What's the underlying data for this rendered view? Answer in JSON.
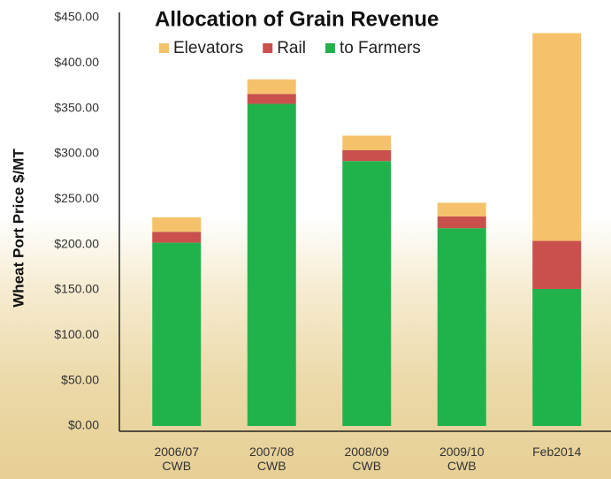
{
  "chart_data": {
    "type": "stacked_bar",
    "title": "Allocation of Grain Revenue",
    "y_label": "Wheat Port Price $/MT",
    "categories": [
      "2006/07 CWB",
      "2007/08 CWB",
      "2008/09 CWB",
      "2009/10 CWB",
      "Feb2014"
    ],
    "series": [
      {
        "name": "Elevators",
        "color": "#f5c26b",
        "values": [
          16,
          16,
          16,
          15,
          229
        ]
      },
      {
        "name": "Rail",
        "color": "#c9504c",
        "values": [
          12,
          11,
          12,
          13,
          53
        ]
      },
      {
        "name": "to Farmers",
        "color": "#22b24c",
        "values": [
          202,
          355,
          292,
          218,
          151
        ]
      }
    ],
    "ylim": [
      0,
      450
    ],
    "yticks": [
      {
        "value": 0,
        "label": "$0.00"
      },
      {
        "value": 50,
        "label": "$50.00"
      },
      {
        "value": 100,
        "label": "$100.00"
      },
      {
        "value": 150,
        "label": "$150.00"
      },
      {
        "value": 200,
        "label": "$200.00"
      },
      {
        "value": 250,
        "label": "$250.00"
      },
      {
        "value": 300,
        "label": "$300.00"
      },
      {
        "value": 350,
        "label": "$350.00"
      },
      {
        "value": 400,
        "label": "$400.00"
      },
      {
        "value": 450,
        "label": "$450.00"
      }
    ],
    "grid": false
  }
}
